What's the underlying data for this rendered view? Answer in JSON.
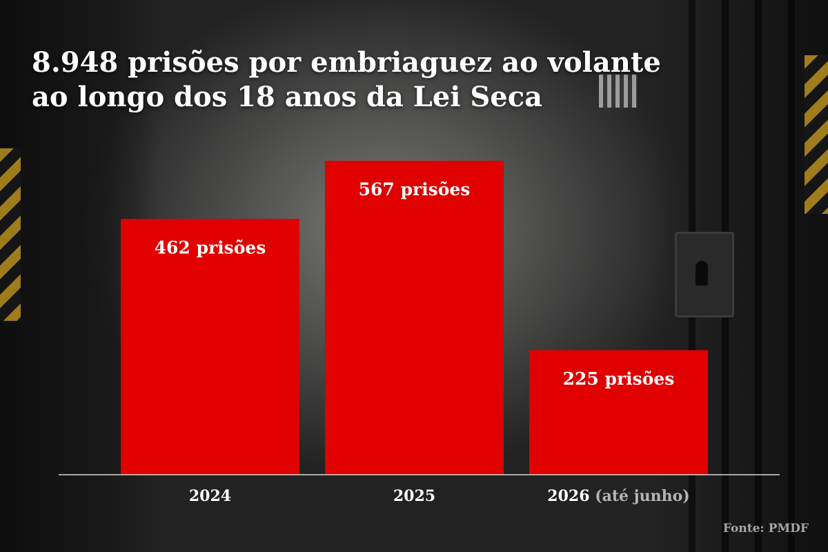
{
  "title": "8.948 prisões por embriaguez ao volante ao longo dos 18 anos da Lei Seca",
  "source": "Fonte: PMDF",
  "chart_data": {
    "type": "bar",
    "categories": [
      "2024",
      "2025",
      "2026"
    ],
    "category_notes": [
      "",
      "",
      "(até junho)"
    ],
    "values": [
      462,
      567,
      225
    ],
    "value_labels": [
      "462 prisões",
      "567 prisões",
      "225 prisões"
    ],
    "bar_color": "#e00000",
    "ylim": [
      0,
      567
    ],
    "grid": false,
    "xlabel": "",
    "ylabel": ""
  }
}
